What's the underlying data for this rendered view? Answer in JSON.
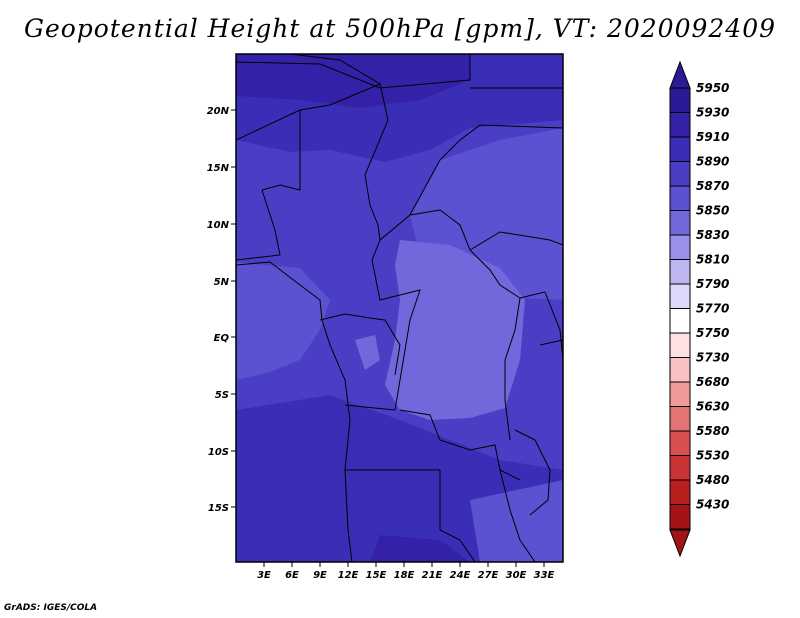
{
  "title": "Geopotential Height at 500hPa [gpm], VT: 2020092409",
  "credit": "GrADS: IGES/COLA",
  "map": {
    "lat_ticks": [
      "20N",
      "15N",
      "10N",
      "5N",
      "EQ",
      "5S",
      "10S",
      "15S"
    ],
    "lon_ticks": [
      "3E",
      "6E",
      "9E",
      "12E",
      "15E",
      "18E",
      "21E",
      "24E",
      "27E",
      "30E",
      "33E"
    ]
  },
  "colorbar": {
    "levels": [
      "5950",
      "5930",
      "5910",
      "5890",
      "5870",
      "5850",
      "5830",
      "5810",
      "5790",
      "5770",
      "5750",
      "5730",
      "5680",
      "5630",
      "5580",
      "5530",
      "5480",
      "5430"
    ],
    "colors": [
      "#2b1a96",
      "#3322a8",
      "#3a2eb6",
      "#4a3ec4",
      "#5a52d0",
      "#7268dc",
      "#9a90ea",
      "#bdb6f3",
      "#dcd8fa",
      "#ffffff",
      "#fde0e0",
      "#f8c2c2",
      "#f09a9a",
      "#e47474",
      "#d85050",
      "#ca3434",
      "#b82020",
      "#a41414"
    ],
    "top_color": "#2b1a96",
    "bottom_color": "#a41414"
  }
}
